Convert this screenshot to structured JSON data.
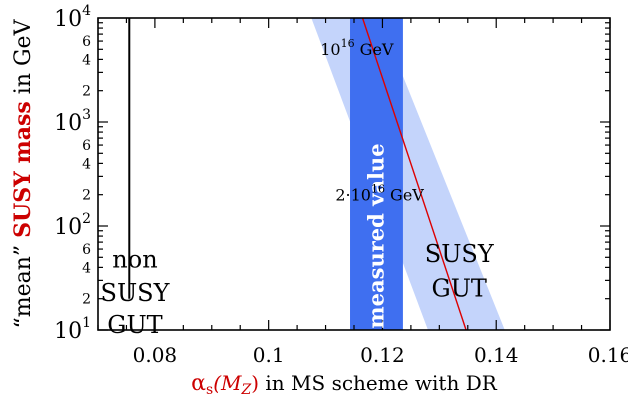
{
  "chart_data": {
    "type": "line",
    "title": "",
    "xlabel": {
      "symbol": "α",
      "subscript": "s",
      "argument": "(M",
      "argument_subscript": "Z",
      "close": ")",
      "rest": " in MS scheme with DR"
    },
    "ylabel": {
      "prefix": "“mean” ",
      "emphasis": "SUSY mass",
      "suffix": " in GeV"
    },
    "xlim": [
      0.07,
      0.16
    ],
    "ylim": [
      10,
      10000
    ],
    "y_scale": "log",
    "x_ticks": [
      {
        "value": 0.08,
        "label": "0.08"
      },
      {
        "value": 0.1,
        "label": "0.1"
      },
      {
        "value": 0.12,
        "label": "0.12"
      },
      {
        "value": 0.14,
        "label": "0.14"
      },
      {
        "value": 0.16,
        "label": "0.16"
      }
    ],
    "y_decades": [
      {
        "value": 10,
        "base": "10",
        "exp": "1"
      },
      {
        "value": 100,
        "base": "10",
        "exp": "2"
      },
      {
        "value": 1000,
        "base": "10",
        "exp": "3"
      },
      {
        "value": 10000,
        "base": "10",
        "exp": "4"
      }
    ],
    "y_minor_labels": [
      "2",
      "4",
      "6"
    ],
    "colors": {
      "band": "#c4d4fb",
      "measured": "#3f6ff0",
      "line": "#dd0000",
      "text": "#000000",
      "accent_text": "#cc0000",
      "measured_text": "#ffffff"
    },
    "series": [
      {
        "kind": "band",
        "points_lower": [
          [
            0.1075,
            10000
          ],
          [
            0.128,
            10
          ]
        ],
        "points_upper": [
          [
            0.1195,
            10000
          ],
          [
            0.1415,
            10
          ]
        ]
      },
      {
        "kind": "vertical_band",
        "name": "measured value",
        "x_range": [
          0.1143,
          0.1236
        ],
        "y_range": [
          10,
          10000
        ]
      },
      {
        "kind": "line",
        "points": [
          [
            0.1165,
            10000
          ],
          [
            0.1347,
            10
          ]
        ]
      },
      {
        "kind": "vline",
        "x": 0.0755,
        "y_range": [
          20,
          10000
        ]
      }
    ],
    "annotations": [
      {
        "id": "gut-scale-1",
        "base": "10",
        "exp": "16",
        "unit": " GeV",
        "x": 0.1155,
        "y": 4400
      },
      {
        "id": "gut-scale-2",
        "base": "2·10",
        "exp": "16",
        "unit": " GeV",
        "x": 0.1195,
        "y": 175
      },
      {
        "id": "non-susy-gut",
        "lines": [
          "non",
          "SUSY",
          "GUT"
        ],
        "x": 0.0765,
        "y_lines": [
          40,
          19,
          9.4
        ]
      },
      {
        "id": "susy-gut",
        "lines": [
          "SUSY",
          "GUT"
        ],
        "x": 0.1335,
        "y_lines": [
          45,
          21
        ]
      }
    ]
  }
}
